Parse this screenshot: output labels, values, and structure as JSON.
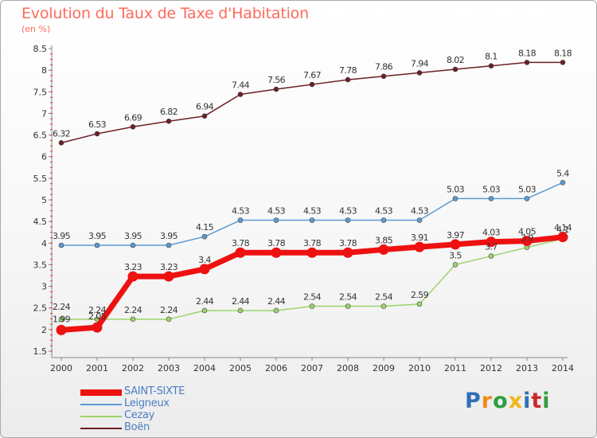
{
  "header": {
    "title": "Evolution du Taux de Taxe d'Habitation",
    "unit": "(en %)"
  },
  "logo": {
    "text": "Proxiti",
    "colors": [
      "#2f6fb7",
      "#f28a17",
      "#2f9e3f",
      "#f2b617",
      "#2f6fb7",
      "#c92a2a",
      "#2f9e3f"
    ]
  },
  "chart_data": {
    "type": "line",
    "title": "Evolution du Taux de Taxe d'Habitation",
    "ylabel": "(en %)",
    "xlabel": "",
    "x": [
      2000,
      2001,
      2002,
      2003,
      2004,
      2005,
      2006,
      2007,
      2008,
      2009,
      2010,
      2011,
      2012,
      2013,
      2014
    ],
    "ylim": [
      1.5,
      8.5
    ],
    "yticks": [
      1.5,
      2,
      2.5,
      3,
      3.5,
      4,
      4.5,
      5,
      5.5,
      6,
      6.5,
      7,
      7.5,
      8,
      8.5
    ],
    "grid": false,
    "legend_position": "bottom-left",
    "series": [
      {
        "name": "Boën",
        "color": "#6b1f26",
        "values": [
          6.32,
          6.53,
          6.69,
          6.82,
          6.94,
          7.44,
          7.56,
          7.67,
          7.78,
          7.86,
          7.94,
          8.02,
          8.1,
          8.18,
          8.18
        ],
        "labels": [
          "6.32",
          "6.53",
          "6.69",
          "6.82",
          "6.94",
          "7.44",
          "7.56",
          "7.67",
          "7.78",
          "7.86",
          "7.94",
          "8.02",
          "8.1",
          "8.18",
          "8.18"
        ]
      },
      {
        "name": "Leigneux",
        "color": "#5b9bd5",
        "values": [
          3.95,
          3.95,
          3.95,
          3.95,
          4.15,
          4.53,
          4.53,
          4.53,
          4.53,
          4.53,
          4.53,
          5.03,
          5.03,
          5.03,
          5.4
        ],
        "labels": [
          "3.95",
          "3.95",
          "3.95",
          "3.95",
          "4.15",
          "4.53",
          "4.53",
          "4.53",
          "4.53",
          "4.53",
          "4.53",
          "5.03",
          "5.03",
          "5.03",
          "5.4"
        ]
      },
      {
        "name": "Cezay",
        "color": "#9ed36a",
        "values": [
          2.24,
          2.24,
          2.24,
          2.24,
          2.44,
          2.44,
          2.44,
          2.54,
          2.54,
          2.54,
          2.59,
          3.5,
          3.7,
          3.9,
          4.1
        ],
        "labels": [
          "2.24",
          "2.24",
          "2.24",
          "2.24",
          "2.44",
          "2.44",
          "2.44",
          "2.54",
          "2.54",
          "2.54",
          "2.59",
          "3.5",
          "3.7",
          "3.9",
          "4.1"
        ]
      },
      {
        "name": "SAINT-SIXTE",
        "color": "#ee1111",
        "values": [
          1.99,
          2.05,
          3.23,
          3.23,
          3.4,
          3.78,
          3.78,
          3.78,
          3.78,
          3.85,
          3.91,
          3.97,
          4.03,
          4.05,
          4.14
        ],
        "labels": [
          "1.99",
          "2.05",
          "3.23",
          "3.23",
          "3.4",
          "3.78",
          "3.78",
          "3.78",
          "3.78",
          "3.85",
          "3.91",
          "3.97",
          "4.03",
          "4.05",
          "4.14"
        ]
      }
    ]
  },
  "legend": [
    {
      "name": "SAINT-SIXTE",
      "color": "#ee1111",
      "label_color": "#4a7ec4"
    },
    {
      "name": "Leigneux",
      "color": "#5b9bd5",
      "label_color": "#4a7ec4"
    },
    {
      "name": "Cezay",
      "color": "#9ed36a",
      "label_color": "#4a7ec4"
    },
    {
      "name": "Boën",
      "color": "#6b1f26",
      "label_color": "#4a7ec4"
    }
  ]
}
